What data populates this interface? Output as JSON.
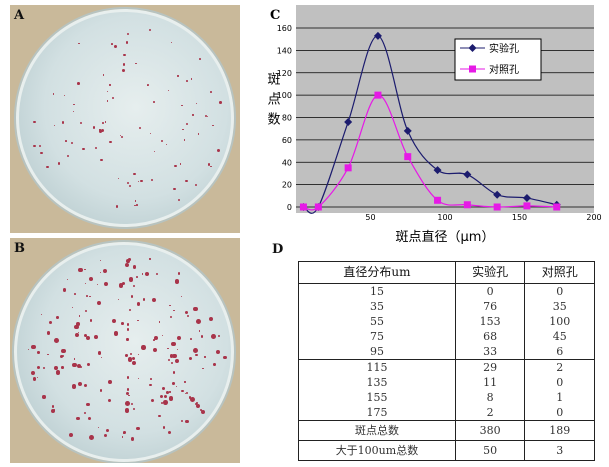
{
  "panels": {
    "a": "A",
    "b": "B",
    "c": "C",
    "d": "D"
  },
  "chart_data": {
    "type": "line",
    "x": [
      5,
      15,
      35,
      55,
      75,
      95,
      115,
      135,
      155,
      175
    ],
    "series": [
      {
        "name": "实验孔",
        "values": [
          0,
          0,
          76,
          153,
          68,
          33,
          29,
          11,
          8,
          2
        ],
        "color": "#1c1c6e",
        "marker": "diamond"
      },
      {
        "name": "对照孔",
        "values": [
          0,
          0,
          35,
          100,
          45,
          6,
          2,
          0,
          1,
          0
        ],
        "color": "#e619e6",
        "marker": "square"
      }
    ],
    "xlabel": "斑点直径（μm）",
    "ylabel": "斑点数",
    "xlim": [
      0,
      200
    ],
    "ylim": [
      0,
      160
    ],
    "xticks": [
      "50",
      "100",
      "150",
      "200"
    ],
    "yticks": [
      "0",
      "20",
      "40",
      "60",
      "80",
      "100",
      "120",
      "140",
      "160"
    ],
    "grid": true,
    "background": "#c0c0c0",
    "legend": "top-right"
  },
  "table": {
    "headers": [
      "直径分布um",
      "实验孔",
      "对照孔"
    ],
    "rows": [
      [
        "15",
        "0",
        "0"
      ],
      [
        "35",
        "76",
        "35"
      ],
      [
        "55",
        "153",
        "100"
      ],
      [
        "75",
        "68",
        "45"
      ],
      [
        "95",
        "33",
        "6"
      ],
      [
        "115",
        "29",
        "2"
      ],
      [
        "135",
        "11",
        "0"
      ],
      [
        "155",
        "8",
        "1"
      ],
      [
        "175",
        "2",
        "0"
      ]
    ],
    "totals": [
      [
        "斑点总数",
        "380",
        "189"
      ],
      [
        "大于100um总数",
        "50",
        "3"
      ]
    ]
  }
}
